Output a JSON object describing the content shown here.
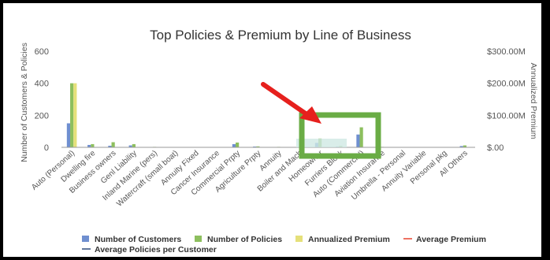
{
  "chart_data": {
    "type": "bar",
    "title": "Top Policies & Premium by Line of Business",
    "ylabel_left": "Number of Customers & Policies",
    "ylabel_right": "Annualized Premium",
    "ylim_left": [
      0,
      600
    ],
    "ylim_right": [
      0,
      300
    ],
    "left_ticks": [
      "0",
      "200",
      "400",
      "600"
    ],
    "right_ticks": [
      "$.00",
      "$100.00M",
      "$200.00M",
      "$300.00M"
    ],
    "grid": false,
    "legend_position": "bottom",
    "categories": [
      "Auto (Personal)",
      "Dwelling fire",
      "Business owners",
      "Genl Liability",
      "Inland Marine (pers)",
      "Watercraft (small boat)",
      "Annuity Fixed",
      "Cancer Insurance",
      "Commercial Prpty",
      "Agriculture Prpty",
      "Annuity",
      "Boiler and Mach",
      "Homeowner",
      "Furriers Block",
      "Auto (Commercial)",
      "Aviation Insurance",
      "Umbrella - Personal",
      "Annuity Variable",
      "Personal pkg",
      "All Others"
    ],
    "series": [
      {
        "name": "Number of Customers",
        "color": "#6f8fd0",
        "axis": "left",
        "values": [
          150,
          15,
          10,
          12,
          2,
          1,
          1,
          1,
          20,
          5,
          2,
          2,
          28,
          5,
          80,
          2,
          1,
          1,
          1,
          8
        ]
      },
      {
        "name": "Number of Policies",
        "color": "#8dbf5e",
        "axis": "left",
        "values": [
          400,
          20,
          32,
          20,
          3,
          2,
          2,
          2,
          30,
          6,
          3,
          3,
          55,
          8,
          125,
          3,
          2,
          2,
          2,
          12
        ]
      },
      {
        "name": "Annualized Premium",
        "color": "#e5e07a",
        "axis": "right",
        "values": [
          200,
          0.5,
          0.5,
          0.5,
          0.1,
          0.1,
          0.1,
          0.1,
          0.5,
          0.1,
          0.1,
          0.1,
          0.5,
          0.1,
          0.5,
          0.1,
          0.1,
          0.1,
          0.1,
          0.2
        ]
      },
      {
        "name": "Average Premium",
        "color": "#e8432f",
        "type": "line"
      },
      {
        "name": "Average Policies per Customer",
        "color": "#2d4a7a",
        "type": "line"
      }
    ],
    "annotations": [
      {
        "kind": "arrow",
        "color": "#e6201d"
      },
      {
        "kind": "highlight-box",
        "color": "#6aac45"
      }
    ]
  }
}
